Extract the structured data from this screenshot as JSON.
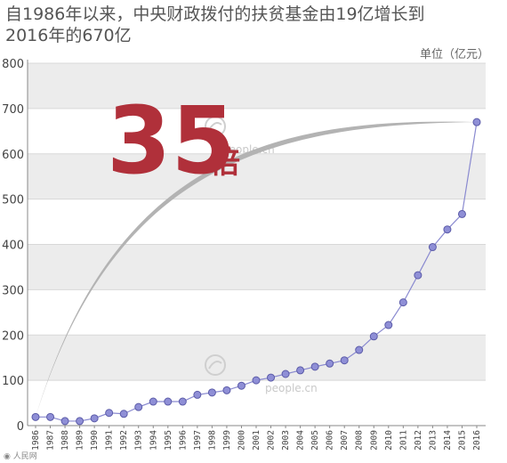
{
  "header": {
    "title_line1": "自1986年以来，中央财政拨付的扶贫基金由19亿增长到",
    "title_line2": "2016年的670亿",
    "unit": "单位（亿元）"
  },
  "annotation": {
    "multiple": "35",
    "suffix": "倍"
  },
  "watermark": {
    "text_top": "people.cn",
    "text_bottom": "people.cn"
  },
  "credit": "人民网",
  "chart_data": {
    "type": "line",
    "title": "自1986年以来，中央财政拨付的扶贫基金由19亿增长到2016年的670亿",
    "xlabel": "",
    "ylabel": "单位（亿元）",
    "ylim": [
      0,
      800
    ],
    "yticks": [
      0,
      100,
      200,
      300,
      400,
      500,
      600,
      700,
      800
    ],
    "grid": "horizontal bands",
    "legend": "none",
    "colors": {
      "line": "#8a8ad0",
      "marker_fill": "#8f8fd6",
      "marker_stroke": "#5b5ba8",
      "curve": "#b0b0b0",
      "band": "#ececec",
      "accent": "#b0303a"
    },
    "categories": [
      "1986",
      "1987",
      "1988",
      "1989",
      "1990",
      "1991",
      "1992",
      "1993",
      "1994",
      "1995",
      "1996",
      "1997",
      "1998",
      "1999",
      "2000",
      "2001",
      "2002",
      "2003",
      "2004",
      "2005",
      "2006",
      "2007",
      "2008",
      "2009",
      "2010",
      "2011",
      "2012",
      "2013",
      "2014",
      "2015",
      "2016"
    ],
    "series": [
      {
        "values": [
          19,
          19,
          10,
          10,
          16,
          28,
          26,
          41,
          53,
          53,
          53,
          68,
          73,
          78,
          88,
          100,
          106,
          114,
          122,
          130,
          137,
          144,
          167,
          197,
          222,
          272,
          332,
          394,
          433,
          467,
          670
        ]
      }
    ]
  }
}
